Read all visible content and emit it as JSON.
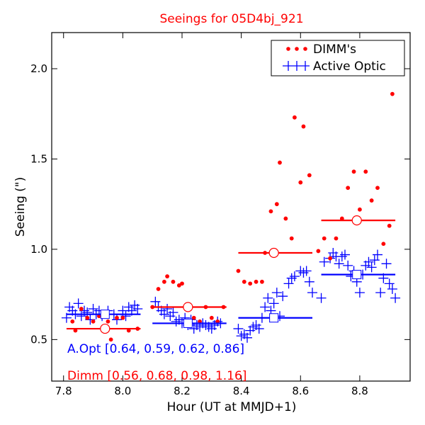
{
  "chart_data": {
    "type": "scatter",
    "title": "Seeings for 05D4bj_921",
    "xlabel": "Hour (UT at MMJD+1)",
    "ylabel": "Seeing (\")",
    "xlim": [
      7.76,
      8.97
    ],
    "ylim": [
      0.27,
      2.2
    ],
    "grid": false,
    "legend_position": "top-right",
    "x_ticks": [
      7.8,
      8.0,
      8.2,
      8.4,
      8.6,
      8.8
    ],
    "x_tick_labels": [
      "7.8",
      "8.0",
      "8.2",
      "8.4",
      "8.6",
      "8.8"
    ],
    "y_ticks": [
      0.5,
      1.0,
      1.5,
      2.0
    ],
    "y_tick_labels": [
      "0.5",
      "1.0",
      "1.5",
      "2.0"
    ],
    "annotations": {
      "aopt": "A.Opt [0.64, 0.59, 0.62, 0.86]",
      "dimm": "Dimm [0.56, 0.68, 0.98, 1.16]"
    },
    "series": [
      {
        "name": "DIMM's",
        "color": "#ff0000",
        "marker": "dot",
        "points": [
          [
            7.83,
            0.6
          ],
          [
            7.84,
            0.55
          ],
          [
            7.86,
            0.67
          ],
          [
            7.88,
            0.62
          ],
          [
            7.9,
            0.6
          ],
          [
            7.92,
            0.63
          ],
          [
            7.94,
            0.55
          ],
          [
            7.95,
            0.6
          ],
          [
            7.96,
            0.5
          ],
          [
            7.98,
            0.62
          ],
          [
            8.0,
            0.62
          ],
          [
            8.02,
            0.55
          ],
          [
            8.05,
            0.56
          ],
          [
            8.1,
            0.68
          ],
          [
            8.12,
            0.78
          ],
          [
            8.14,
            0.82
          ],
          [
            8.15,
            0.85
          ],
          [
            8.17,
            0.82
          ],
          [
            8.19,
            0.8
          ],
          [
            8.2,
            0.81
          ],
          [
            8.22,
            0.68
          ],
          [
            8.24,
            0.62
          ],
          [
            8.26,
            0.6
          ],
          [
            8.28,
            0.68
          ],
          [
            8.3,
            0.62
          ],
          [
            8.32,
            0.6
          ],
          [
            8.34,
            0.68
          ],
          [
            8.39,
            0.88
          ],
          [
            8.41,
            0.82
          ],
          [
            8.43,
            0.81
          ],
          [
            8.45,
            0.82
          ],
          [
            8.47,
            0.82
          ],
          [
            8.48,
            0.98
          ],
          [
            8.5,
            1.21
          ],
          [
            8.52,
            1.25
          ],
          [
            8.53,
            1.48
          ],
          [
            8.55,
            1.17
          ],
          [
            8.57,
            1.06
          ],
          [
            8.58,
            1.73
          ],
          [
            8.6,
            1.37
          ],
          [
            8.61,
            1.68
          ],
          [
            8.63,
            1.41
          ],
          [
            8.66,
            0.99
          ],
          [
            8.68,
            1.06
          ],
          [
            8.7,
            0.95
          ],
          [
            8.72,
            1.06
          ],
          [
            8.74,
            1.17
          ],
          [
            8.76,
            1.34
          ],
          [
            8.78,
            1.43
          ],
          [
            8.8,
            1.22
          ],
          [
            8.82,
            1.43
          ],
          [
            8.84,
            1.27
          ],
          [
            8.86,
            1.34
          ],
          [
            8.88,
            1.03
          ],
          [
            8.9,
            1.13
          ],
          [
            8.91,
            1.86
          ]
        ]
      },
      {
        "name": "Active Optic",
        "color": "#0000ff",
        "marker": "plus",
        "points": [
          [
            7.81,
            0.62
          ],
          [
            7.82,
            0.68
          ],
          [
            7.83,
            0.66
          ],
          [
            7.84,
            0.64
          ],
          [
            7.85,
            0.7
          ],
          [
            7.86,
            0.63
          ],
          [
            7.87,
            0.66
          ],
          [
            7.88,
            0.65
          ],
          [
            7.89,
            0.61
          ],
          [
            7.9,
            0.67
          ],
          [
            7.91,
            0.64
          ],
          [
            7.92,
            0.66
          ],
          [
            7.93,
            0.63
          ],
          [
            7.95,
            0.66
          ],
          [
            7.97,
            0.64
          ],
          [
            7.98,
            0.61
          ],
          [
            8.0,
            0.66
          ],
          [
            8.01,
            0.63
          ],
          [
            8.02,
            0.68
          ],
          [
            8.03,
            0.66
          ],
          [
            8.04,
            0.69
          ],
          [
            8.05,
            0.67
          ],
          [
            8.11,
            0.71
          ],
          [
            8.12,
            0.68
          ],
          [
            8.13,
            0.66
          ],
          [
            8.14,
            0.64
          ],
          [
            8.15,
            0.67
          ],
          [
            8.16,
            0.63
          ],
          [
            8.17,
            0.65
          ],
          [
            8.18,
            0.6
          ],
          [
            8.19,
            0.61
          ],
          [
            8.2,
            0.59
          ],
          [
            8.21,
            0.62
          ],
          [
            8.22,
            0.58
          ],
          [
            8.23,
            0.61
          ],
          [
            8.24,
            0.56
          ],
          [
            8.25,
            0.58
          ],
          [
            8.26,
            0.57
          ],
          [
            8.27,
            0.59
          ],
          [
            8.28,
            0.58
          ],
          [
            8.29,
            0.57
          ],
          [
            8.3,
            0.56
          ],
          [
            8.31,
            0.58
          ],
          [
            8.32,
            0.6
          ],
          [
            8.33,
            0.59
          ],
          [
            8.39,
            0.56
          ],
          [
            8.4,
            0.52
          ],
          [
            8.41,
            0.53
          ],
          [
            8.42,
            0.51
          ],
          [
            8.43,
            0.55
          ],
          [
            8.44,
            0.57
          ],
          [
            8.45,
            0.58
          ],
          [
            8.46,
            0.56
          ],
          [
            8.47,
            0.62
          ],
          [
            8.48,
            0.68
          ],
          [
            8.49,
            0.73
          ],
          [
            8.5,
            0.66
          ],
          [
            8.51,
            0.7
          ],
          [
            8.52,
            0.76
          ],
          [
            8.53,
            0.63
          ],
          [
            8.54,
            0.74
          ],
          [
            8.56,
            0.81
          ],
          [
            8.57,
            0.84
          ],
          [
            8.58,
            0.85
          ],
          [
            8.6,
            0.88
          ],
          [
            8.61,
            0.87
          ],
          [
            8.62,
            0.88
          ],
          [
            8.63,
            0.82
          ],
          [
            8.64,
            0.76
          ],
          [
            8.67,
            0.73
          ],
          [
            8.68,
            0.93
          ],
          [
            8.7,
            0.95
          ],
          [
            8.71,
            0.98
          ],
          [
            8.72,
            0.96
          ],
          [
            8.73,
            0.92
          ],
          [
            8.74,
            0.96
          ],
          [
            8.75,
            0.97
          ],
          [
            8.76,
            0.91
          ],
          [
            8.77,
            0.85
          ],
          [
            8.78,
            0.88
          ],
          [
            8.79,
            0.82
          ],
          [
            8.8,
            0.76
          ],
          [
            8.81,
            0.86
          ],
          [
            8.82,
            0.91
          ],
          [
            8.83,
            0.93
          ],
          [
            8.84,
            0.9
          ],
          [
            8.85,
            0.94
          ],
          [
            8.86,
            0.97
          ],
          [
            8.87,
            0.76
          ],
          [
            8.88,
            0.84
          ],
          [
            8.89,
            0.92
          ],
          [
            8.9,
            0.81
          ],
          [
            8.91,
            0.78
          ],
          [
            8.92,
            0.73
          ]
        ]
      }
    ],
    "means": [
      {
        "x_range": [
          7.81,
          8.06
        ],
        "dimm": 0.56,
        "aopt": 0.64,
        "x_center": 7.94
      },
      {
        "x_range": [
          8.1,
          8.35
        ],
        "dimm": 0.68,
        "aopt": 0.59,
        "x_center": 8.22
      },
      {
        "x_range": [
          8.39,
          8.64
        ],
        "dimm": 0.98,
        "aopt": 0.62,
        "x_center": 8.51
      },
      {
        "x_range": [
          8.67,
          8.92
        ],
        "dimm": 1.16,
        "aopt": 0.86,
        "x_center": 8.79
      }
    ]
  }
}
